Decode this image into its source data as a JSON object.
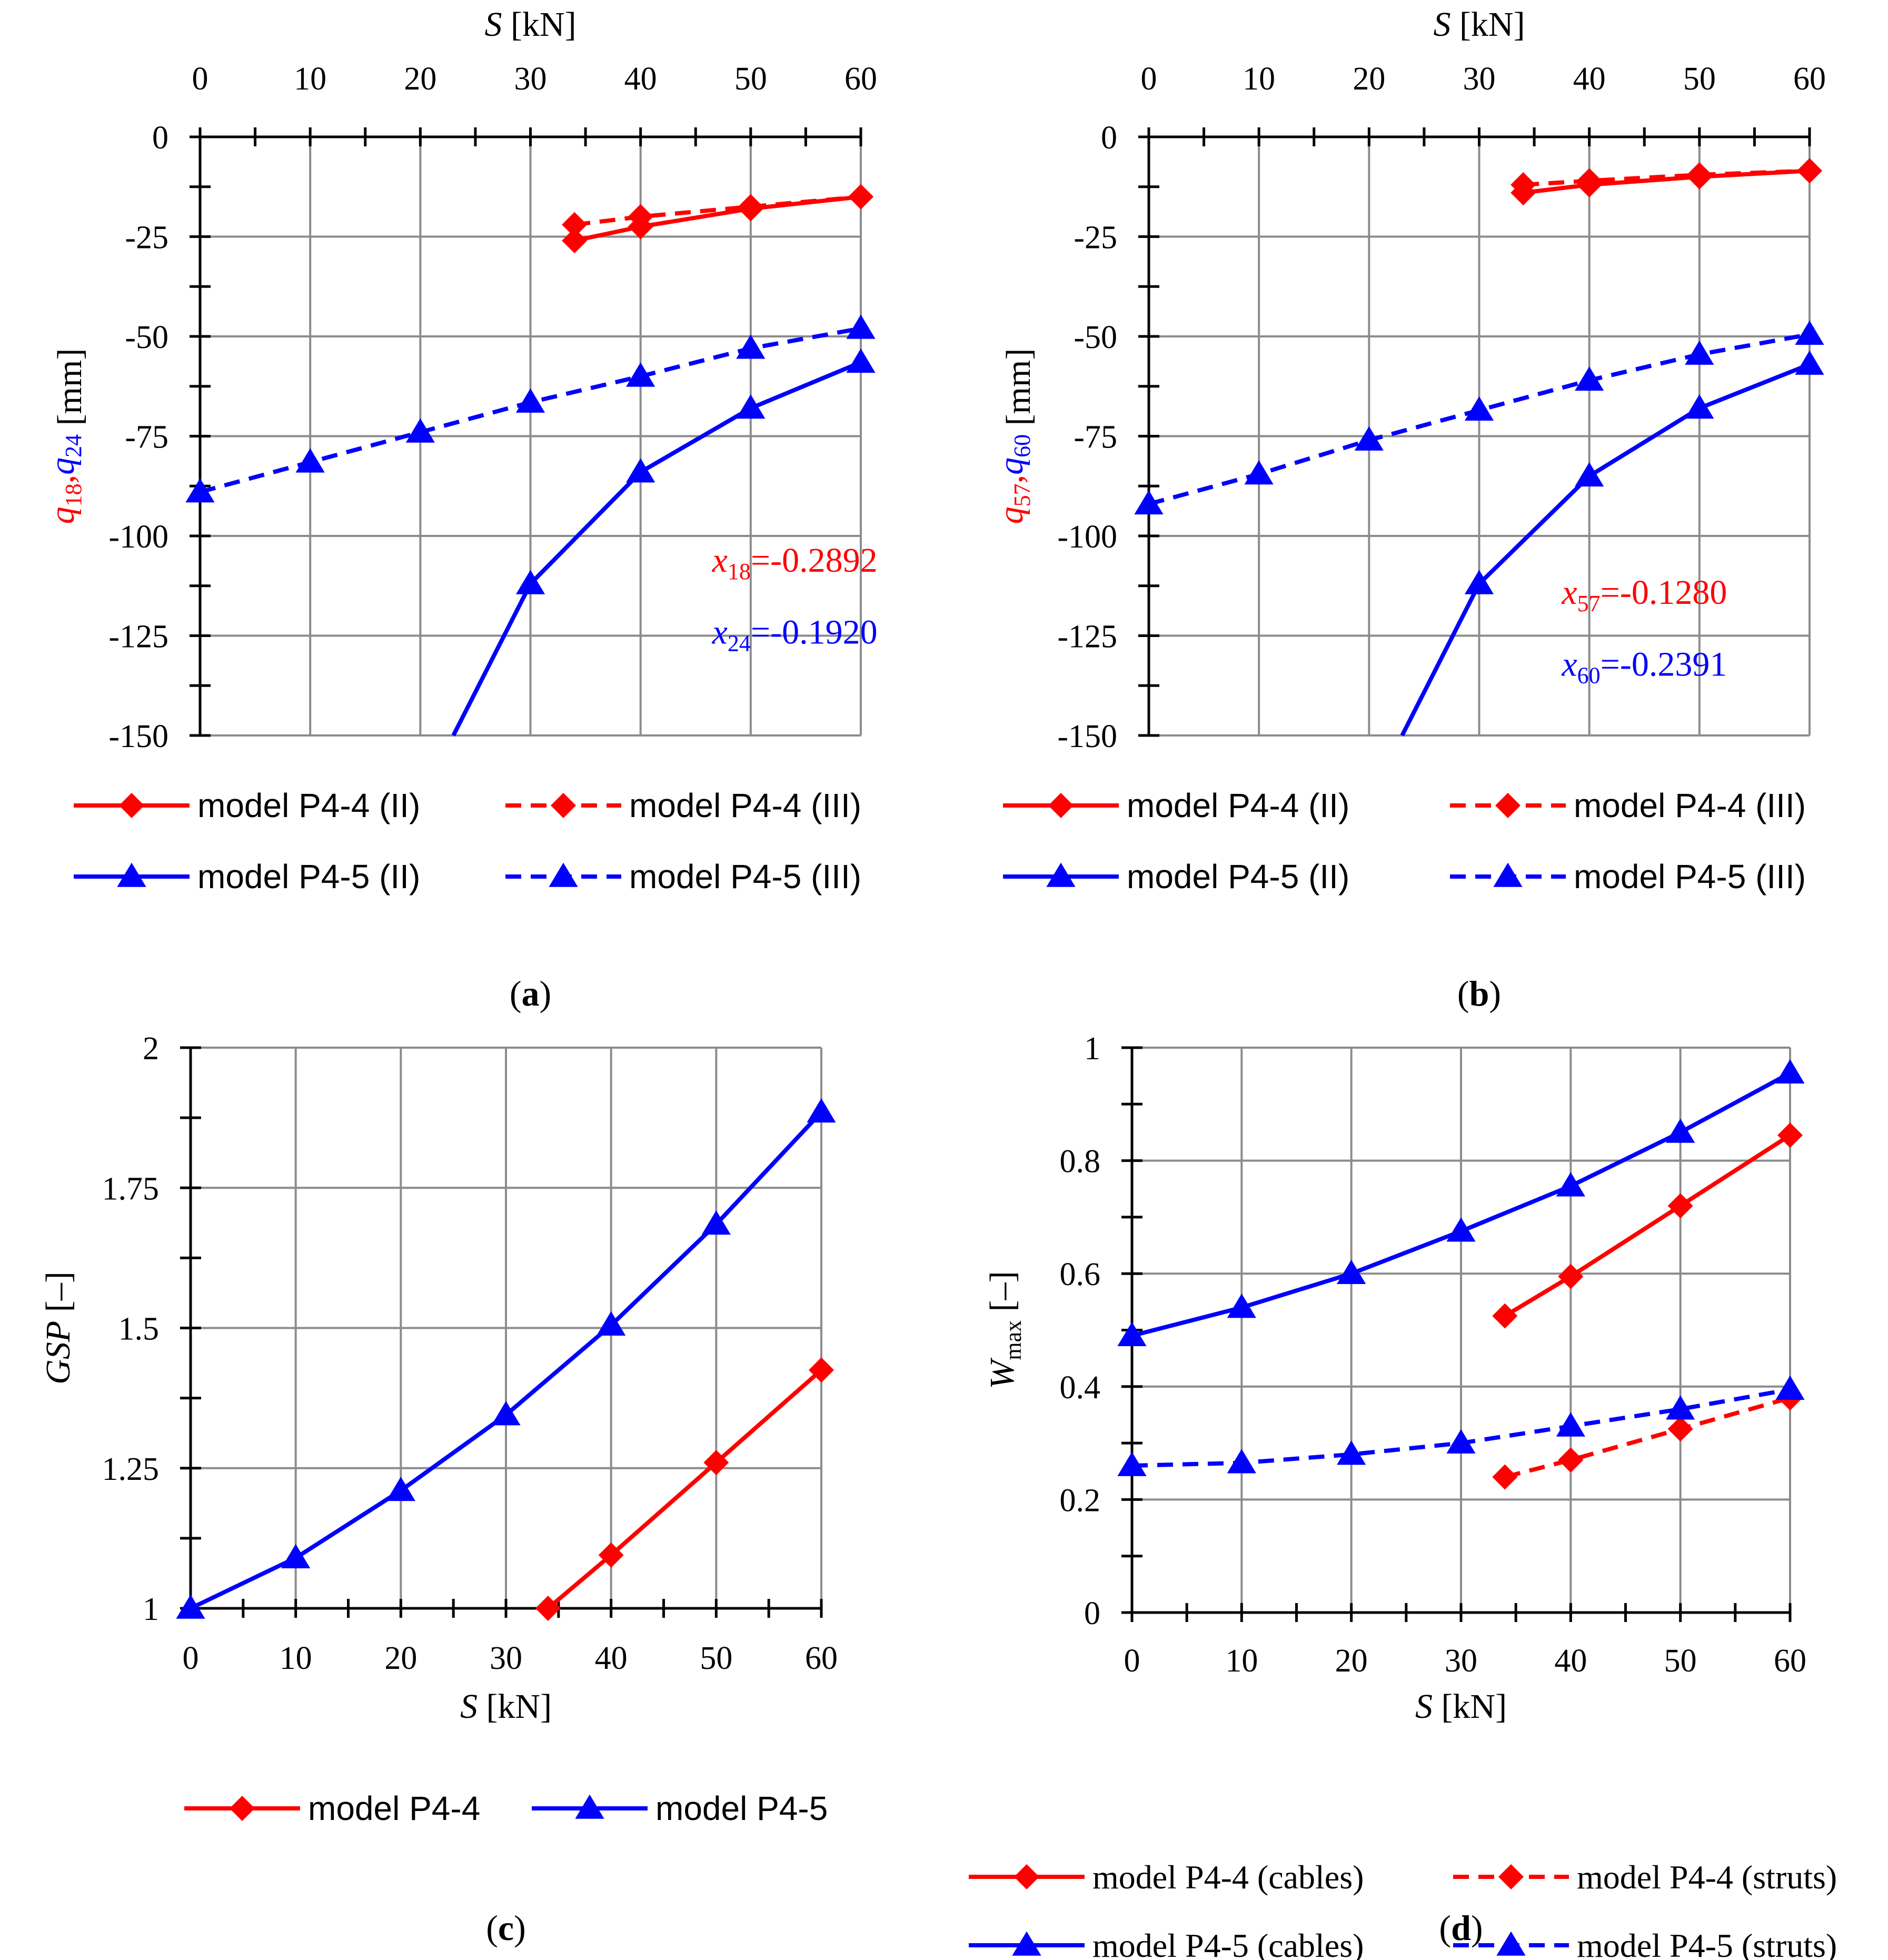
{
  "colors": {
    "red": "#ff0000",
    "blue": "#0000ff",
    "grid": "#8c8c8c",
    "axis": "#000000"
  },
  "chart_data": [
    {
      "id": "a",
      "type": "line",
      "panel_label": "a",
      "xaxis_position": "top",
      "xlabel": "[kN]",
      "xlabel_var": "S",
      "xlim": [
        0,
        60
      ],
      "xticks": [
        0,
        10,
        20,
        30,
        40,
        50,
        60
      ],
      "xtick_labels": [
        "0",
        "10",
        "20",
        "30",
        "40",
        "50",
        "60"
      ],
      "ylim": [
        -150,
        0
      ],
      "yticks": [
        0,
        -25,
        -50,
        -75,
        -100,
        -125,
        -150
      ],
      "ytick_labels": [
        "0",
        "-25",
        "-50",
        "-75",
        "-100",
        "-125",
        "-150"
      ],
      "ylabel_parts": [
        {
          "text": "q",
          "sub": "18",
          "color": "red",
          "sep": ","
        },
        {
          "text": "q",
          "sub": "24",
          "color": "blue",
          "sep": ""
        }
      ],
      "ylabel_unit": "[mm]",
      "annotations": [
        {
          "var": "x",
          "sub": "18",
          "text": "=-0.2892",
          "color": "red",
          "at": [
            46.5,
            -109
          ]
        },
        {
          "var": "x",
          "sub": "24",
          "text": "=-0.1920",
          "color": "blue",
          "at": [
            46.5,
            -127
          ]
        }
      ],
      "legend_position": "bottom",
      "legend_font": "sans",
      "series": [
        {
          "name": "model P4-4 (II)",
          "color": "red",
          "dash": false,
          "marker": "diamond",
          "x": [
            34,
            40,
            50,
            60
          ],
          "y": [
            -26,
            -22.5,
            -18,
            -15
          ]
        },
        {
          "name": "model P4-4 (III)",
          "color": "red",
          "dash": true,
          "marker": "diamond",
          "x": [
            34,
            40,
            50,
            60
          ],
          "y": [
            -22,
            -20,
            -17.5,
            -15
          ]
        },
        {
          "name": "model P4-5 (II)",
          "color": "blue",
          "dash": false,
          "marker": "triangle",
          "x": [
            30,
            40,
            50,
            60
          ],
          "y": [
            -112,
            -84,
            -68,
            -56.5
          ],
          "extend_to": [
            23,
            -150
          ]
        },
        {
          "name": "model P4-5 (III)",
          "color": "blue",
          "dash": true,
          "marker": "triangle",
          "x": [
            0,
            10,
            20,
            30,
            40,
            50,
            60
          ],
          "y": [
            -89,
            -81.5,
            -74,
            -66.5,
            -60,
            -53,
            -48
          ]
        }
      ]
    },
    {
      "id": "b",
      "type": "line",
      "panel_label": "b",
      "xaxis_position": "top",
      "xlabel": "[kN]",
      "xlabel_var": "S",
      "xlim": [
        0,
        60
      ],
      "xticks": [
        0,
        10,
        20,
        30,
        40,
        50,
        60
      ],
      "xtick_labels": [
        "0",
        "10",
        "20",
        "30",
        "40",
        "50",
        "60"
      ],
      "ylim": [
        -150,
        0
      ],
      "yticks": [
        0,
        -25,
        -50,
        -75,
        -100,
        -125,
        -150
      ],
      "ytick_labels": [
        "0",
        "-25",
        "-50",
        "-75",
        "-100",
        "-125",
        "-150"
      ],
      "ylabel_parts": [
        {
          "text": "q",
          "sub": "57",
          "color": "red",
          "sep": ","
        },
        {
          "text": "q",
          "sub": "60",
          "color": "blue",
          "sep": ""
        }
      ],
      "ylabel_unit": "[mm]",
      "annotations": [
        {
          "var": "x",
          "sub": "57",
          "text": "=-0.1280",
          "color": "red",
          "at": [
            37.5,
            -117
          ]
        },
        {
          "var": "x",
          "sub": "60",
          "text": "=-0.2391",
          "color": "blue",
          "at": [
            37.5,
            -135
          ]
        }
      ],
      "legend_position": "bottom",
      "legend_font": "sans",
      "series": [
        {
          "name": "model P4-4 (II)",
          "color": "red",
          "dash": false,
          "marker": "diamond",
          "x": [
            34,
            40,
            50,
            60
          ],
          "y": [
            -14,
            -12,
            -10,
            -8.5
          ]
        },
        {
          "name": "model P4-4 (III)",
          "color": "red",
          "dash": true,
          "marker": "diamond",
          "x": [
            34,
            40,
            50,
            60
          ],
          "y": [
            -12,
            -11,
            -9.5,
            -8.5
          ]
        },
        {
          "name": "model P4-5 (II)",
          "color": "blue",
          "dash": false,
          "marker": "triangle",
          "x": [
            30,
            40,
            50,
            60
          ],
          "y": [
            -112,
            -85,
            -68,
            -57
          ],
          "extend_to": [
            23,
            -150
          ]
        },
        {
          "name": "model P4-5 (III)",
          "color": "blue",
          "dash": true,
          "marker": "triangle",
          "x": [
            0,
            10,
            20,
            30,
            40,
            50,
            60
          ],
          "y": [
            -92,
            -84.5,
            -76,
            -68.5,
            -61,
            -54.5,
            -49.5
          ]
        }
      ]
    },
    {
      "id": "c",
      "type": "line",
      "panel_label": "c",
      "xaxis_position": "bottom",
      "xlabel": "[kN]",
      "xlabel_var": "S",
      "xlim": [
        0,
        60
      ],
      "xticks": [
        0,
        10,
        20,
        30,
        40,
        50,
        60
      ],
      "xtick_labels": [
        "0",
        "10",
        "20",
        "30",
        "40",
        "50",
        "60"
      ],
      "ylim": [
        1,
        2
      ],
      "yticks": [
        1,
        1.25,
        1.5,
        1.75,
        2
      ],
      "ytick_labels": [
        "1",
        "1.25",
        "1.5",
        "1.75",
        "2"
      ],
      "ylabel_var": "GSP",
      "ylabel_unit": "[–]",
      "legend_position": "bottom",
      "legend_font": "sans",
      "series": [
        {
          "name": "model P4-4",
          "color": "red",
          "dash": false,
          "marker": "diamond",
          "x": [
            34,
            40,
            50,
            60
          ],
          "y": [
            1.0,
            1.095,
            1.26,
            1.425
          ]
        },
        {
          "name": "model P4-5",
          "color": "blue",
          "dash": false,
          "marker": "triangle",
          "x": [
            0,
            10,
            20,
            30,
            40,
            50,
            60
          ],
          "y": [
            1.0,
            1.09,
            1.21,
            1.345,
            1.505,
            1.685,
            1.885
          ]
        }
      ]
    },
    {
      "id": "d",
      "type": "line",
      "panel_label": "d",
      "xaxis_position": "bottom",
      "xlabel": "[kN]",
      "xlabel_var": "S",
      "xlim": [
        0,
        60
      ],
      "xticks": [
        0,
        10,
        20,
        30,
        40,
        50,
        60
      ],
      "xtick_labels": [
        "0",
        "10",
        "20",
        "30",
        "40",
        "50",
        "60"
      ],
      "ylim": [
        0,
        1
      ],
      "yticks": [
        0,
        0.2,
        0.4,
        0.6,
        0.8,
        1
      ],
      "ytick_labels": [
        "0",
        "0.2",
        "0.4",
        "0.6",
        "0.8",
        "1"
      ],
      "ylabel_var": "W",
      "ylabel_sub": "max",
      "ylabel_unit": "[–]",
      "legend_position": "bottom",
      "legend_font": "serif",
      "series": [
        {
          "name": "model P4-4 (cables)",
          "color": "red",
          "dash": false,
          "marker": "diamond",
          "x": [
            34,
            40,
            50,
            60
          ],
          "y": [
            0.525,
            0.595,
            0.72,
            0.845
          ]
        },
        {
          "name": "model P4-4 (struts)",
          "color": "red",
          "dash": true,
          "marker": "diamond",
          "x": [
            34,
            40,
            50,
            60
          ],
          "y": [
            0.24,
            0.27,
            0.325,
            0.38
          ]
        },
        {
          "name": "model P4-5 (cables)",
          "color": "blue",
          "dash": false,
          "marker": "triangle",
          "x": [
            0,
            10,
            20,
            30,
            40,
            50,
            60
          ],
          "y": [
            0.49,
            0.54,
            0.6,
            0.675,
            0.755,
            0.85,
            0.955
          ]
        },
        {
          "name": "model P4-5 (struts)",
          "color": "blue",
          "dash": true,
          "marker": "triangle",
          "x": [
            0,
            10,
            20,
            30,
            40,
            50,
            60
          ],
          "y": [
            0.26,
            0.265,
            0.28,
            0.3,
            0.33,
            0.36,
            0.395
          ]
        }
      ]
    }
  ]
}
